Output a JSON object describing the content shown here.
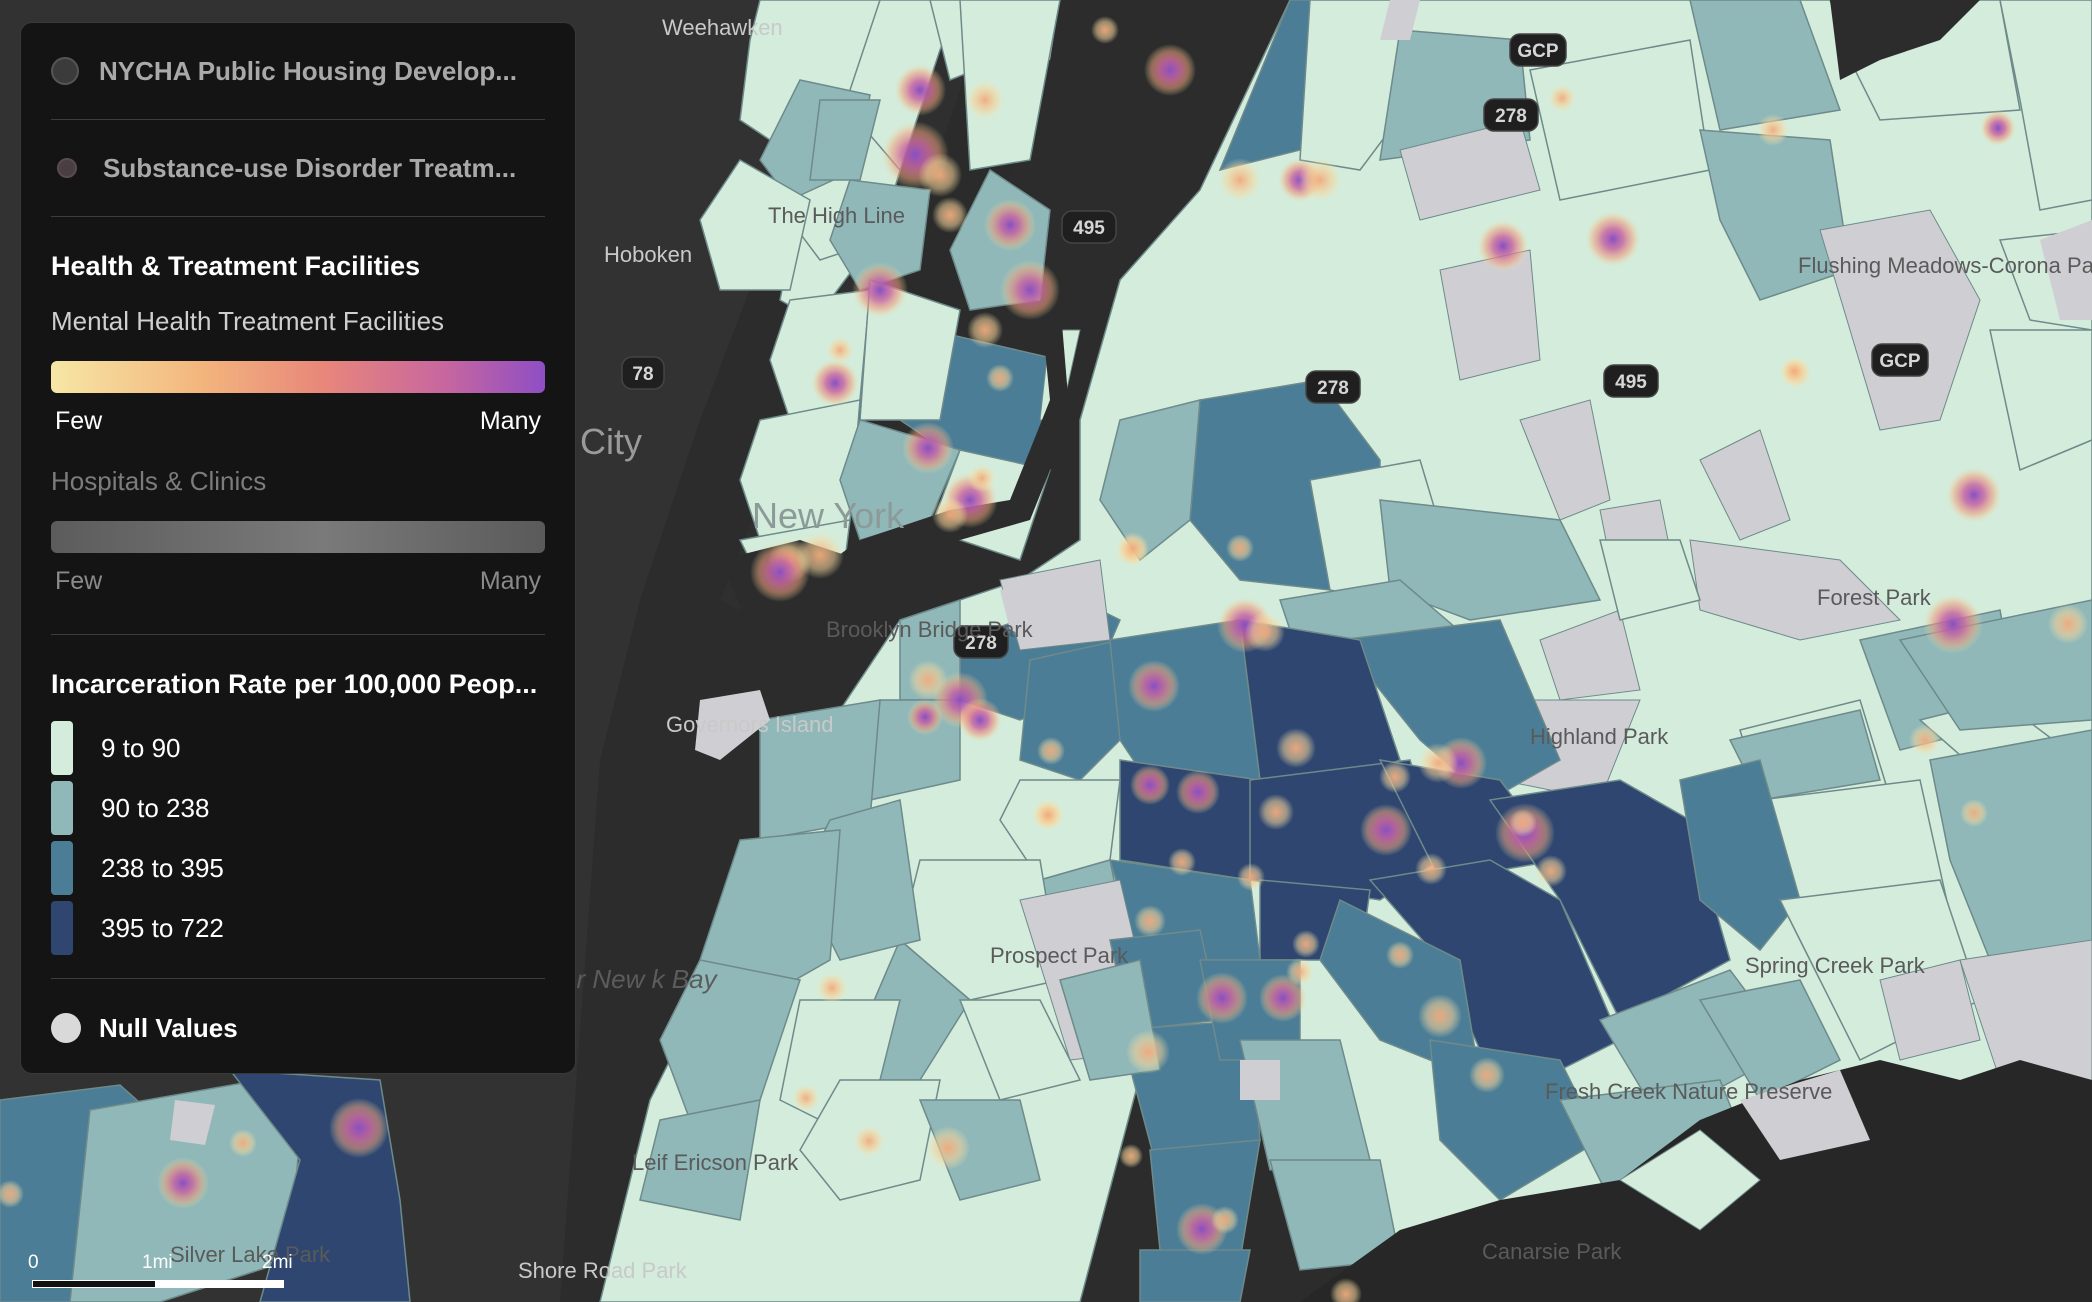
{
  "map": {
    "place_labels": {
      "weehawken": "Weehawken",
      "high_line": "The High Line",
      "hoboken": "Hoboken",
      "city": "City",
      "new_york": "New York",
      "brooklyn_bridge_park": "Brooklyn Bridge Park",
      "governors_island": "Governors Island",
      "upper_new_york_bay": "er New\nk Bay",
      "prospect_park": "Prospect Park",
      "leif_ericson_park": "Leif Ericson Park",
      "silver_lake_park": "Silver Lake Park",
      "shore_road_park": "Shore Road Park",
      "flushing_meadows": "Flushing Meadows-Corona Park",
      "forest_park": "Forest Park",
      "highland_park": "Highland Park",
      "spring_creek_park": "Spring Creek Park",
      "fresh_creek": "Fresh Creek Nature Preserve",
      "canarsie_park": "Canarsie Park"
    },
    "highway_shields": [
      "GCP",
      "278",
      "495",
      "78",
      "278",
      "495",
      "278",
      "GCP"
    ],
    "scale_bar": {
      "start": "0",
      "mid": "1mi",
      "end": "2mi"
    },
    "choropleth_colors": [
      "#d3ecdc",
      "#90b8b8",
      "#4b7d96",
      "#2e4670"
    ],
    "null_color": "#cfcfd3",
    "water_color": "#2c2c2c"
  },
  "legend": {
    "layers": [
      {
        "label": "NYCHA Public Housing Develop...",
        "control": "checkbox-off"
      },
      {
        "label": "Substance-use Disorder Treatm...",
        "control": "dot"
      }
    ],
    "health_section": {
      "title": "Health & Treatment Facilities",
      "mental_health": {
        "label": "Mental Health Treatment Facilities",
        "low": "Few",
        "high": "Many"
      },
      "hospitals": {
        "label": "Hospitals & Clinics",
        "low": "Few",
        "high": "Many"
      }
    },
    "incarceration_section": {
      "title": "Incarceration Rate per 100,000 Peop...",
      "classes": [
        {
          "label": "9 to 90",
          "color": "#d3ecdc"
        },
        {
          "label": "90 to 238",
          "color": "#90b8b8"
        },
        {
          "label": "238 to 395",
          "color": "#4b7d96"
        },
        {
          "label": "395 to 722",
          "color": "#2e4670"
        }
      ]
    },
    "null_values": {
      "label": "Null Values"
    }
  }
}
